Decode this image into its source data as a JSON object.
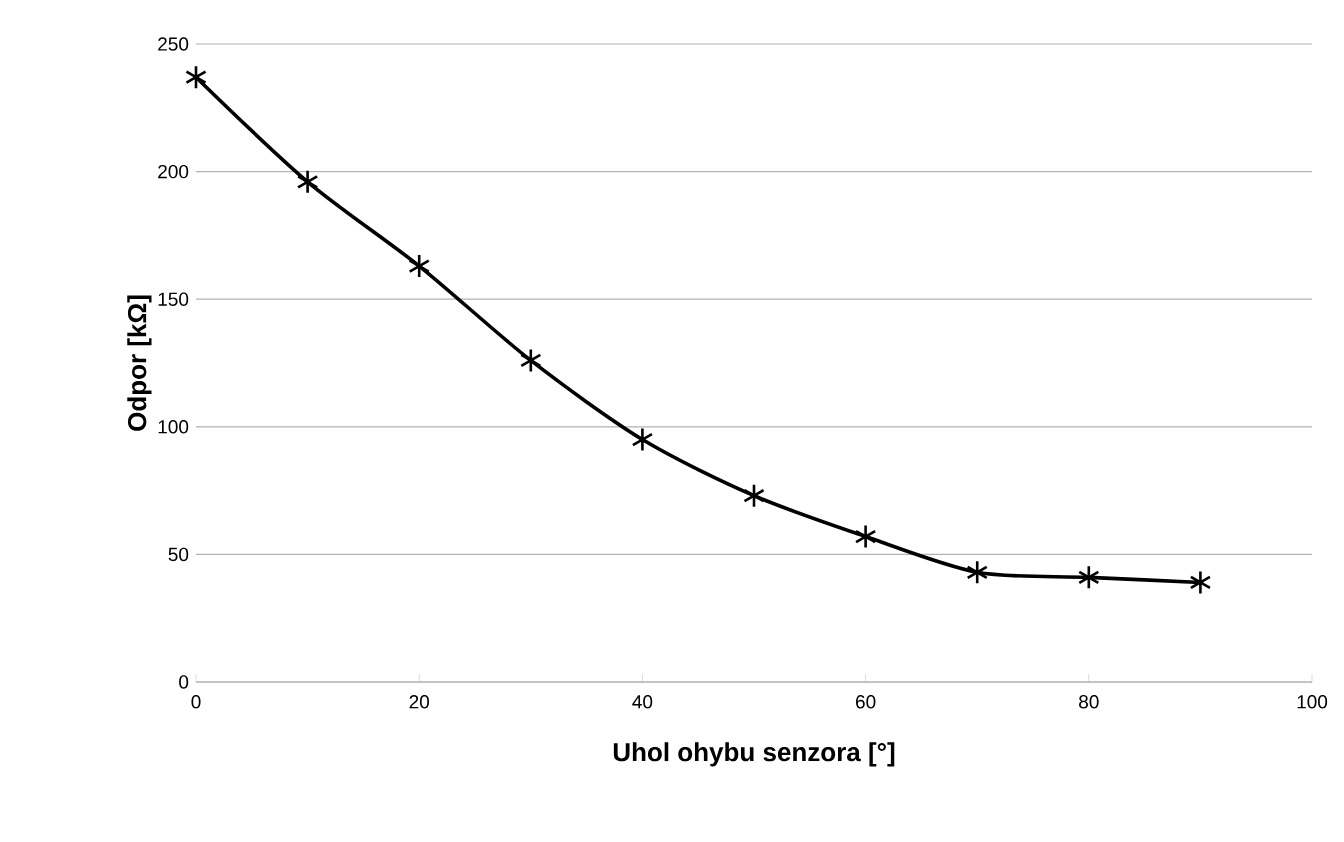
{
  "chart_data": {
    "type": "line",
    "xlabel": "Uhol ohybu senzora [°]",
    "ylabel": "Odpor [kΩ]",
    "x": [
      0,
      10,
      20,
      30,
      40,
      50,
      60,
      70,
      80,
      90
    ],
    "series": [
      {
        "color": "#000000",
        "values": [
          237,
          196,
          163,
          126,
          95,
          73,
          57,
          43,
          41,
          39
        ]
      }
    ],
    "xlim": [
      0,
      100
    ],
    "ylim": [
      0,
      250
    ],
    "xticks": [
      0,
      20,
      40,
      60,
      80,
      100
    ],
    "yticks": [
      0,
      50,
      100,
      150,
      200,
      250
    ],
    "grid": "y",
    "marker": "cross",
    "line_style": "solid"
  }
}
